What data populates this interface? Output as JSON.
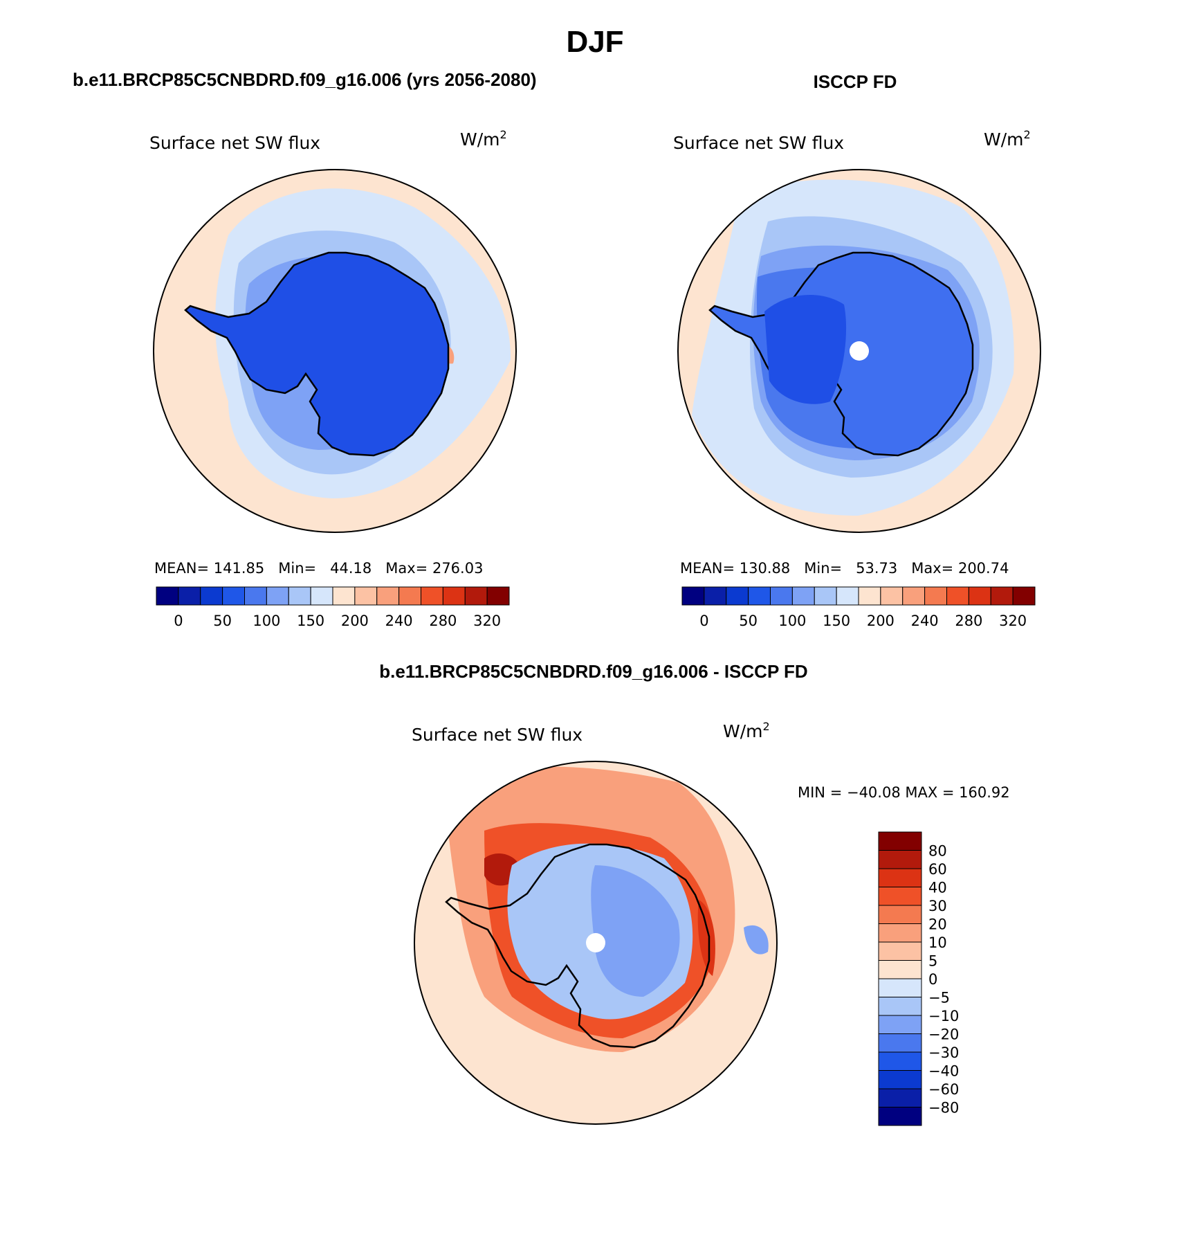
{
  "main_title": "DJF",
  "colors": {
    "abs_levels": [
      "#000080",
      "#0a1fa8",
      "#0b3ad0",
      "#1f57e8",
      "#4a78ee",
      "#7ea2f5",
      "#a9c6f7",
      "#d6e6fb",
      "#fde4d0",
      "#fcc2a4",
      "#f9a07c",
      "#f47a50",
      "#ef5128",
      "#dc3314",
      "#b21a0c",
      "#820000"
    ],
    "diff_levels": [
      "#000080",
      "#0a1fa8",
      "#0b3ad0",
      "#1f57e8",
      "#4a78ee",
      "#7ea2f5",
      "#a9c6f7",
      "#d6e6fb",
      "#fde4d0",
      "#fcc2a4",
      "#f9a07c",
      "#f47a50",
      "#ef5128",
      "#dc3314",
      "#b21a0c",
      "#820000"
    ],
    "land": "#1f4fe6",
    "land_isccp": "#3f6ff0"
  },
  "panels": {
    "model": {
      "header": "b.e11.BRCP85C5CNBDRD.f09_g16.006 (yrs 2056-2080)",
      "variable": "Surface net SW flux",
      "units_base": "W/m",
      "units_exp": "2",
      "stats": "MEAN= 141.85   Min=   44.18   Max= 276.03",
      "colorbar_ticks": [
        "0",
        "50",
        "100",
        "150",
        "200",
        "240",
        "280",
        "320"
      ]
    },
    "obs": {
      "header": "ISCCP FD",
      "variable": "Surface net SW flux",
      "units_base": "W/m",
      "units_exp": "2",
      "stats": "MEAN= 130.88   Min=   53.73   Max= 200.74",
      "colorbar_ticks": [
        "0",
        "50",
        "100",
        "150",
        "200",
        "240",
        "280",
        "320"
      ]
    },
    "diff": {
      "header": "b.e11.BRCP85C5CNBDRD.f09_g16.006 - ISCCP FD",
      "variable": "Surface net SW flux",
      "units_base": "W/m",
      "units_exp": "2",
      "minmax": "MIN = −40.08 MAX = 160.92",
      "colorbar_ticks": [
        "80",
        "60",
        "40",
        "30",
        "20",
        "10",
        "5",
        "0",
        "−5",
        "−10",
        "−20",
        "−30",
        "−40",
        "−60",
        "−80"
      ]
    }
  },
  "chart_data": [
    {
      "type": "heatmap",
      "projection": "south-polar stereographic",
      "title": "Surface net SW flux",
      "subtitle": "b.e11.BRCP85C5CNBDRD.f09_g16.006 (yrs 2056-2080)",
      "units": "W/m2",
      "mean": 141.85,
      "min": 44.18,
      "max": 276.03,
      "contour_levels": [
        0,
        25,
        50,
        75,
        100,
        125,
        150,
        175,
        200,
        220,
        240,
        260,
        280,
        300,
        320
      ]
    },
    {
      "type": "heatmap",
      "projection": "south-polar stereographic",
      "title": "Surface net SW flux",
      "subtitle": "ISCCP FD",
      "units": "W/m2",
      "mean": 130.88,
      "min": 53.73,
      "max": 200.74,
      "contour_levels": [
        0,
        25,
        50,
        75,
        100,
        125,
        150,
        175,
        200,
        220,
        240,
        260,
        280,
        300,
        320
      ]
    },
    {
      "type": "heatmap",
      "projection": "south-polar stereographic",
      "title": "Surface net SW flux",
      "subtitle": "b.e11.BRCP85C5CNBDRD.f09_g16.006 - ISCCP FD",
      "units": "W/m2",
      "min": -40.08,
      "max": 160.92,
      "contour_levels": [
        -80,
        -60,
        -40,
        -30,
        -20,
        -10,
        -5,
        0,
        5,
        10,
        20,
        30,
        40,
        60,
        80
      ]
    }
  ]
}
